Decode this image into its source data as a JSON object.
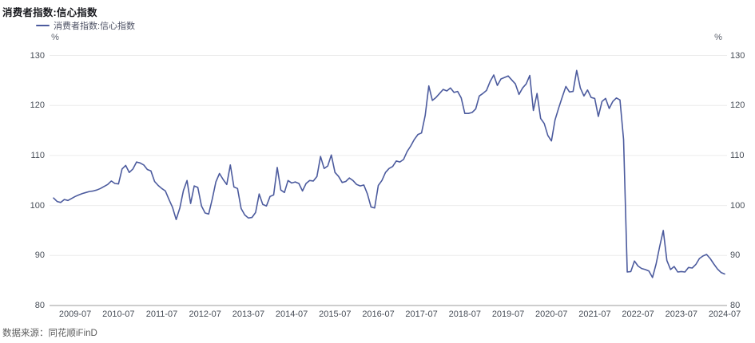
{
  "header": {
    "title": "消费者指数:信心指数"
  },
  "legend": {
    "label": "消费者指数:信心指数",
    "color": "#4c5b9e"
  },
  "axes": {
    "y_unit": "%",
    "y_ticks": [
      80,
      90,
      100,
      110,
      120,
      130
    ],
    "x_tick_labels": [
      "2009-07",
      "2010-07",
      "2011-07",
      "2012-07",
      "2013-07",
      "2014-07",
      "2015-07",
      "2016-07",
      "2017-07",
      "2018-07",
      "2019-07",
      "2020-07",
      "2021-07",
      "2022-07",
      "2023-07",
      "2024-07"
    ]
  },
  "footer": {
    "source": "数据来源：同花顺iFinD"
  },
  "colors": {
    "line": "#4c5b9e",
    "grid": "#ececec",
    "axis": "#9b9b9b",
    "tick_text": "#474d57"
  },
  "chart_data": {
    "type": "line",
    "title": "消费者指数:信心指数",
    "x_start": "2009-01",
    "x_end": "2024-07",
    "frequency": "monthly",
    "ylim": [
      80,
      130
    ],
    "y_unit": "%",
    "grid": true,
    "legend_position": "top-left",
    "x_tick_labels": [
      "2009-07",
      "2010-07",
      "2011-07",
      "2012-07",
      "2013-07",
      "2014-07",
      "2015-07",
      "2016-07",
      "2017-07",
      "2018-07",
      "2019-07",
      "2020-07",
      "2021-07",
      "2022-07",
      "2023-07",
      "2024-07"
    ],
    "series": [
      {
        "name": "消费者指数:信心指数",
        "color": "#4c5b9e",
        "values": [
          101.5,
          100.8,
          100.6,
          101.2,
          101.0,
          101.4,
          101.8,
          102.1,
          102.4,
          102.6,
          102.8,
          102.9,
          103.1,
          103.4,
          103.8,
          104.2,
          104.9,
          104.4,
          104.3,
          107.3,
          108.0,
          106.6,
          107.3,
          108.7,
          108.5,
          108.1,
          107.2,
          106.9,
          104.8,
          104.0,
          103.4,
          102.9,
          101.2,
          99.6,
          97.2,
          99.5,
          103.0,
          105.0,
          100.4,
          103.9,
          103.6,
          99.9,
          98.5,
          98.3,
          101.3,
          104.7,
          106.4,
          105.2,
          104.2,
          108.1,
          103.7,
          103.4,
          99.4,
          98.1,
          97.5,
          97.6,
          98.6,
          102.3,
          100.2,
          99.9,
          101.8,
          102.1,
          107.6,
          103.1,
          102.6,
          105.0,
          104.5,
          104.7,
          104.4,
          102.9,
          104.4,
          105.0,
          104.9,
          105.8,
          109.8,
          107.4,
          107.9,
          110.1,
          106.6,
          105.8,
          104.6,
          104.8,
          105.5,
          105.0,
          104.2,
          103.9,
          104.1,
          102.3,
          99.7,
          99.5,
          104.0,
          105.0,
          106.6,
          107.4,
          107.8,
          108.9,
          108.7,
          109.2,
          110.8,
          111.9,
          113.2,
          114.2,
          114.5,
          118.0,
          123.9,
          121.0,
          121.6,
          122.4,
          123.2,
          122.9,
          123.5,
          122.6,
          122.8,
          121.5,
          118.4,
          118.4,
          118.6,
          119.3,
          121.9,
          122.4,
          123.0,
          124.8,
          126.1,
          124.0,
          125.3,
          125.6,
          125.9,
          125.1,
          124.3,
          122.2,
          123.5,
          124.3,
          126.0,
          119.0,
          122.4,
          117.4,
          116.4,
          114.0,
          112.9,
          117.1,
          119.5,
          121.7,
          123.8,
          122.7,
          122.8,
          127.0,
          123.5,
          121.9,
          123.1,
          121.6,
          121.4,
          117.8,
          120.8,
          121.4,
          119.4,
          120.8,
          121.5,
          121.1,
          113.2,
          86.7,
          86.8,
          88.9,
          87.9,
          87.4,
          87.2,
          86.9,
          85.6,
          88.3,
          91.8,
          95.0,
          89.0,
          87.2,
          87.8,
          86.7,
          86.8,
          86.7,
          87.6,
          87.5,
          88.2,
          89.4,
          89.9,
          90.2,
          89.4,
          88.3,
          87.3,
          86.6,
          86.3
        ]
      }
    ]
  }
}
